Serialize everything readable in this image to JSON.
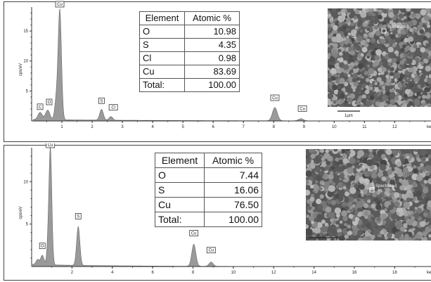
{
  "chart_data": [
    {
      "type": "line",
      "ylabel": "cps/eV",
      "xunit": "ke",
      "xlim": [
        0,
        13.2
      ],
      "ylim": [
        0,
        19
      ],
      "xticks": [
        "1",
        "2",
        "3",
        "4",
        "5",
        "6",
        "7",
        "8",
        "9",
        "10",
        "11",
        "12"
      ],
      "xtick_values": [
        1,
        2,
        3,
        4,
        5,
        6,
        7,
        8,
        9,
        10,
        11,
        12
      ],
      "yticks": [
        "5",
        "10",
        "15"
      ],
      "ytick_values": [
        5,
        10,
        15
      ],
      "peaks": [
        {
          "label": "C",
          "x": 0.28,
          "y": 1.2,
          "width": 0.07
        },
        {
          "label": "O",
          "x": 0.53,
          "y": 1.6,
          "width": 0.07
        },
        {
          "label": "Cu",
          "x": 0.93,
          "y": 18.4,
          "width": 0.055
        },
        {
          "label": "",
          "x": 0.81,
          "y": 3.0,
          "width": 0.05
        },
        {
          "label": "S",
          "x": 2.31,
          "y": 1.8,
          "width": 0.06
        },
        {
          "label": "Cl",
          "x": 2.62,
          "y": 0.6,
          "width": 0.06
        },
        {
          "label": "Cu",
          "x": 8.04,
          "y": 2.2,
          "width": 0.08
        },
        {
          "label": "Cu",
          "x": 8.9,
          "y": 0.35,
          "width": 0.08
        }
      ],
      "peak_labels": [
        {
          "text": "C",
          "x": 0.28,
          "y": 1.9
        },
        {
          "text": "O",
          "x": 0.58,
          "y": 2.7
        },
        {
          "text": "Cu",
          "x": 0.93,
          "y": 19.0
        },
        {
          "text": "S",
          "x": 2.31,
          "y": 2.9
        },
        {
          "text": "Cl",
          "x": 2.7,
          "y": 1.8
        },
        {
          "text": "Cu",
          "x": 8.04,
          "y": 3.4
        },
        {
          "text": "Cu",
          "x": 8.95,
          "y": 1.6
        }
      ],
      "table": {
        "headers": [
          "Element",
          "Atomic %"
        ],
        "rows": [
          [
            "O",
            "10.98"
          ],
          [
            "S",
            "4.35"
          ],
          [
            "Cl",
            "0.98"
          ],
          [
            "Cu",
            "83.69"
          ],
          [
            "Total:",
            "100.00"
          ]
        ]
      },
      "sem": {
        "scale_label": "1µm",
        "spectrum_label": "Spectrum 1"
      }
    },
    {
      "type": "line",
      "ylabel": "cps/eV",
      "xunit": "ke",
      "xlim": [
        0,
        19.8
      ],
      "ylim": [
        0,
        14
      ],
      "xticks": [
        "2",
        "4",
        "6",
        "8",
        "10",
        "12",
        "14",
        "16",
        "18"
      ],
      "xtick_values": [
        2,
        4,
        6,
        8,
        10,
        12,
        14,
        16,
        18
      ],
      "yticks": [
        "5",
        "10"
      ],
      "ytick_values": [
        5,
        10
      ],
      "peaks": [
        {
          "label": "",
          "x": 0.3,
          "y": 0.6,
          "width": 0.08
        },
        {
          "label": "O",
          "x": 0.53,
          "y": 1.1,
          "width": 0.08
        },
        {
          "label": "Cu",
          "x": 0.93,
          "y": 13.7,
          "width": 0.07
        },
        {
          "label": "",
          "x": 0.81,
          "y": 2.0,
          "width": 0.06
        },
        {
          "label": "S",
          "x": 2.31,
          "y": 4.6,
          "width": 0.08
        },
        {
          "label": "Cu",
          "x": 8.04,
          "y": 2.6,
          "width": 0.1
        },
        {
          "label": "Cu",
          "x": 8.9,
          "y": 0.5,
          "width": 0.1
        }
      ],
      "peak_labels": [
        {
          "text": "O",
          "x": 0.53,
          "y": 2.1
        },
        {
          "text": "Cu",
          "x": 0.93,
          "y": 14.0
        },
        {
          "text": "S",
          "x": 2.31,
          "y": 5.6
        },
        {
          "text": "Cu",
          "x": 8.04,
          "y": 3.6
        },
        {
          "text": "Cu",
          "x": 8.9,
          "y": 1.6
        }
      ],
      "table": {
        "headers": [
          "Element",
          "Atomic %"
        ],
        "rows": [
          [
            "O",
            "7.44"
          ],
          [
            "S",
            "16.06"
          ],
          [
            "Cu",
            "76.50"
          ],
          [
            "Total:",
            "100.00"
          ]
        ]
      },
      "sem": {
        "scale_label": "2.5µm",
        "spectrum_label": "Spectrum 1"
      }
    }
  ]
}
